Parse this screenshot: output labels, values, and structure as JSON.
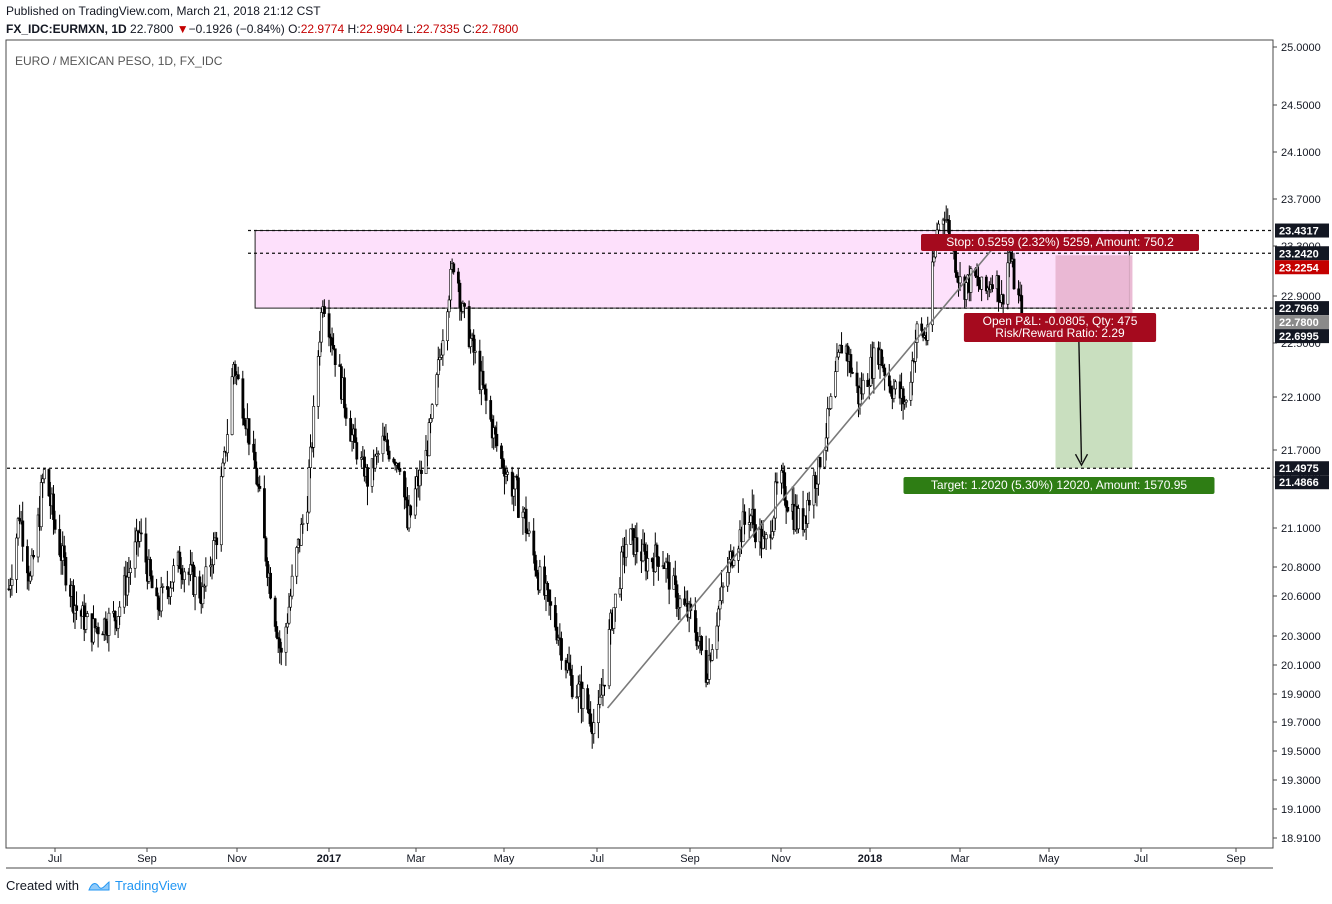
{
  "header": {
    "published": "Published on TradingView.com, March 21, 2018 21:12 CST",
    "symbol": "FX_IDC:EURMXN, 1D",
    "last": "22.7800",
    "change": "−0.1926 (−0.84%)",
    "open_label": "O:",
    "open": "22.9774",
    "high_label": "H:",
    "high": "22.9904",
    "low_label": "L:",
    "low": "22.7335",
    "close_label": "C:",
    "close": "22.7800"
  },
  "footer": {
    "created_with": "Created with",
    "brand": "TradingView"
  },
  "colors": {
    "zone_fill": "#fde0fb",
    "stop_fill": "#e8b4cf",
    "target_fill": "#c9dfbf",
    "stop_label_bg": "#a50a1e",
    "target_label_bg": "#2e7d14",
    "price_label_dark": "#131722",
    "price_label_red": "#c40000",
    "price_label_gray": "#8a8a8a"
  },
  "chart_data": {
    "type": "candlestick",
    "title": "EURO / MEXICAN PESO, 1D, FX_IDC",
    "ylim": [
      18.8,
      25.05
    ],
    "y_ticks": [
      "25.0000",
      "24.5000",
      "24.1000",
      "23.7000",
      "23.3000",
      "22.9000",
      "22.5000",
      "22.1000",
      "21.7000",
      "21.4000",
      "21.1000",
      "20.8000",
      "20.6000",
      "20.3000",
      "20.1000",
      "19.9000",
      "19.7000",
      "19.5000",
      "19.3000",
      "19.1000",
      "18.9100"
    ],
    "x_ticks": [
      "Jul",
      "Sep",
      "Nov",
      "2017",
      "Mar",
      "May",
      "Jul",
      "Sep",
      "Nov",
      "2018",
      "Mar",
      "May",
      "Jul",
      "Sep"
    ],
    "close_series": {
      "start": "2016-06-01",
      "end": "2018-03-21",
      "anchors": [
        [
          "2016-06-01",
          20.65
        ],
        [
          "2016-06-08",
          21.2
        ],
        [
          "2016-06-15",
          20.7
        ],
        [
          "2016-06-24",
          21.45
        ],
        [
          "2016-07-05",
          20.9
        ],
        [
          "2016-07-15",
          20.5
        ],
        [
          "2016-07-25",
          20.35
        ],
        [
          "2016-08-10",
          20.45
        ],
        [
          "2016-08-25",
          21.05
        ],
        [
          "2016-09-05",
          20.5
        ],
        [
          "2016-09-20",
          20.85
        ],
        [
          "2016-10-05",
          20.6
        ],
        [
          "2016-10-15",
          21.1
        ],
        [
          "2016-10-25",
          22.35
        ],
        [
          "2016-11-03",
          21.9
        ],
        [
          "2016-11-15",
          20.9
        ],
        [
          "2016-11-25",
          20.15
        ],
        [
          "2016-12-05",
          20.9
        ],
        [
          "2016-12-12",
          21.3
        ],
        [
          "2016-12-22",
          22.9
        ],
        [
          "2017-01-01",
          22.3
        ],
        [
          "2017-01-10",
          21.8
        ],
        [
          "2017-01-20",
          21.4
        ],
        [
          "2017-01-30",
          21.75
        ],
        [
          "2017-02-10",
          21.55
        ],
        [
          "2017-02-15",
          21.1
        ],
        [
          "2017-02-25",
          21.5
        ],
        [
          "2017-03-05",
          22.1
        ],
        [
          "2017-03-12",
          22.8
        ],
        [
          "2017-03-18",
          23.25
        ],
        [
          "2017-03-22",
          22.8
        ],
        [
          "2017-04-05",
          22.15
        ],
        [
          "2017-04-20",
          21.45
        ],
        [
          "2017-05-01",
          21.2
        ],
        [
          "2017-05-12",
          20.7
        ],
        [
          "2017-05-22",
          20.4
        ],
        [
          "2017-06-01",
          20.0
        ],
        [
          "2017-06-10",
          19.85
        ],
        [
          "2017-06-18",
          19.65
        ],
        [
          "2017-06-28",
          20.45
        ],
        [
          "2017-07-08",
          21.05
        ],
        [
          "2017-07-20",
          20.85
        ],
        [
          "2017-07-30",
          20.9
        ],
        [
          "2017-08-08",
          20.6
        ],
        [
          "2017-08-20",
          20.4
        ],
        [
          "2017-08-28",
          20.05
        ],
        [
          "2017-09-05",
          20.5
        ],
        [
          "2017-09-15",
          20.95
        ],
        [
          "2017-09-25",
          21.2
        ],
        [
          "2017-10-05",
          20.95
        ],
        [
          "2017-10-15",
          21.4
        ],
        [
          "2017-10-28",
          21.1
        ],
        [
          "2017-11-08",
          21.45
        ],
        [
          "2017-11-18",
          22.1
        ],
        [
          "2017-11-25",
          22.55
        ],
        [
          "2017-12-05",
          22.1
        ],
        [
          "2017-12-18",
          22.45
        ],
        [
          "2017-12-25",
          22.2
        ],
        [
          "2018-01-05",
          22.05
        ],
        [
          "2018-01-12",
          22.6
        ],
        [
          "2018-01-18",
          22.55
        ],
        [
          "2018-01-25",
          23.45
        ],
        [
          "2018-01-30",
          23.6
        ],
        [
          "2018-02-03",
          23.35
        ],
        [
          "2018-02-10",
          22.95
        ],
        [
          "2018-02-18",
          23.05
        ],
        [
          "2018-02-25",
          22.9
        ],
        [
          "2018-03-03",
          23.1
        ],
        [
          "2018-03-08",
          22.85
        ],
        [
          "2018-03-13",
          23.25
        ],
        [
          "2018-03-17",
          22.95
        ],
        [
          "2018-03-21",
          22.78
        ]
      ]
    },
    "resistance_zone": {
      "from": "2016-11-08",
      "to": "2018-05-30",
      "top": 23.4317,
      "bottom": 22.7969
    },
    "trendline": {
      "from": [
        "2017-06-25",
        19.8
      ],
      "to": [
        "2018-03-10",
        23.4
      ]
    },
    "horizontal_lines": [
      23.4317,
      23.242,
      22.7969,
      21.4975
    ],
    "position": {
      "type": "short",
      "start": "2018-04-12",
      "end": "2018-06-01",
      "entry": 22.6995,
      "stop": 23.2254,
      "target": 21.4975,
      "stop_label": "Stop: 0.5259 (2.32%) 5259, Amount: 750.2",
      "pnl_label": "Open P&L: -0.0805, Qty: 475",
      "rr_label": "Risk/Reward Ratio: 2.29",
      "target_label": "Target: 1.2020 (5.30%) 12020, Amount: 1570.95"
    },
    "price_labels": [
      {
        "value": "23.4317",
        "price": 23.4317,
        "style": "dark"
      },
      {
        "value": "23.2420",
        "price": 23.242,
        "style": "dark"
      },
      {
        "value": "23.2254",
        "price": 23.2254,
        "style": "red"
      },
      {
        "value": "22.7969",
        "price": 22.7969,
        "style": "dark"
      },
      {
        "value": "22.7800",
        "price": 22.78,
        "style": "gray"
      },
      {
        "value": "22.6995",
        "price": 22.6995,
        "style": "dark"
      },
      {
        "value": "21.4975",
        "price": 21.4975,
        "style": "dark"
      },
      {
        "value": "21.4866",
        "price": 21.4866,
        "style": "dark"
      }
    ]
  }
}
